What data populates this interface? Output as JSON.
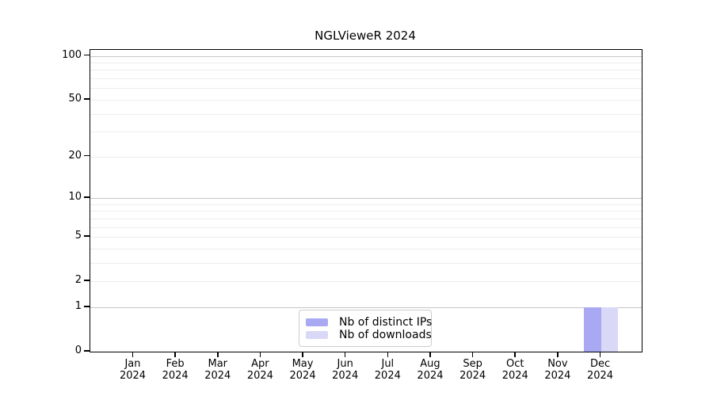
{
  "title": "NGLVieweR 2024",
  "colors": {
    "distinct_ips": "#a9a9f3",
    "downloads": "#d9d9f7",
    "grid_major": "#c6c6c6",
    "grid_minor": "#ededed",
    "axis": "#000000",
    "legend_border": "#cccccc"
  },
  "legend": {
    "items": [
      {
        "label": "Nb of distinct IPs",
        "color_key": "distinct_ips"
      },
      {
        "label": "Nb of downloads",
        "color_key": "downloads"
      }
    ],
    "position": "lower center"
  },
  "chart_data": {
    "type": "bar",
    "title": "NGLVieweR 2024",
    "categories": [
      "Jan 2024",
      "Feb 2024",
      "Mar 2024",
      "Apr 2024",
      "May 2024",
      "Jun 2024",
      "Jul 2024",
      "Aug 2024",
      "Sep 2024",
      "Oct 2024",
      "Nov 2024",
      "Dec 2024"
    ],
    "series": [
      {
        "name": "Nb of distinct IPs",
        "values": [
          0,
          0,
          0,
          0,
          0,
          0,
          0,
          0,
          0,
          0,
          0,
          1
        ]
      },
      {
        "name": "Nb of downloads",
        "values": [
          0,
          0,
          0,
          0,
          0,
          0,
          0,
          0,
          0,
          0,
          0,
          1
        ]
      }
    ],
    "xlabel": "",
    "ylabel": "",
    "yscale": "log1p",
    "ylim": [
      0,
      110
    ],
    "y_ticks": [
      0,
      1,
      2,
      5,
      10,
      20,
      50,
      100
    ],
    "y_major_gridlines": [
      1,
      10,
      100
    ],
    "y_minor_gridlines": [
      2,
      3,
      4,
      5,
      6,
      7,
      8,
      9,
      20,
      30,
      40,
      50,
      60,
      70,
      80,
      90
    ],
    "grid": true,
    "legend_position": "lower center"
  }
}
